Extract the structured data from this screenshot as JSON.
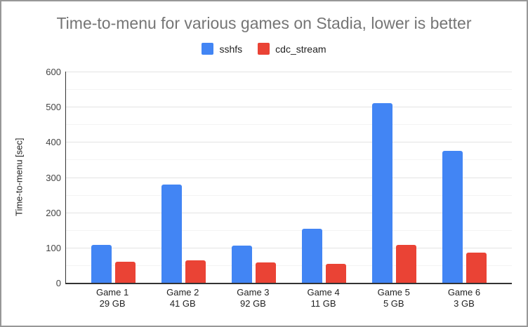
{
  "chart_data": {
    "type": "bar",
    "title": "Time-to-menu for various games on Stadia, lower is better",
    "ylabel": "Time-to-menu [sec]",
    "xlabel": "",
    "ylim": [
      0,
      600
    ],
    "yticks": [
      0,
      100,
      200,
      300,
      400,
      500,
      600
    ],
    "minor_yticks": [
      50,
      150,
      250,
      350,
      450,
      550
    ],
    "grid": true,
    "legend_position": "top",
    "categories": [
      {
        "name": "Game 1",
        "size": "29 GB"
      },
      {
        "name": "Game 2",
        "size": "41 GB"
      },
      {
        "name": "Game 3",
        "size": "92 GB"
      },
      {
        "name": "Game 4",
        "size": "11 GB"
      },
      {
        "name": "Game 5",
        "size": "5 GB"
      },
      {
        "name": "Game 6",
        "size": "3 GB"
      }
    ],
    "series": [
      {
        "name": "sshfs",
        "color": "#4285F4",
        "values": [
          107,
          280,
          105,
          153,
          511,
          374
        ]
      },
      {
        "name": "cdc_stream",
        "color": "#EA4335",
        "values": [
          60,
          63,
          57,
          53,
          108,
          85
        ]
      }
    ]
  }
}
